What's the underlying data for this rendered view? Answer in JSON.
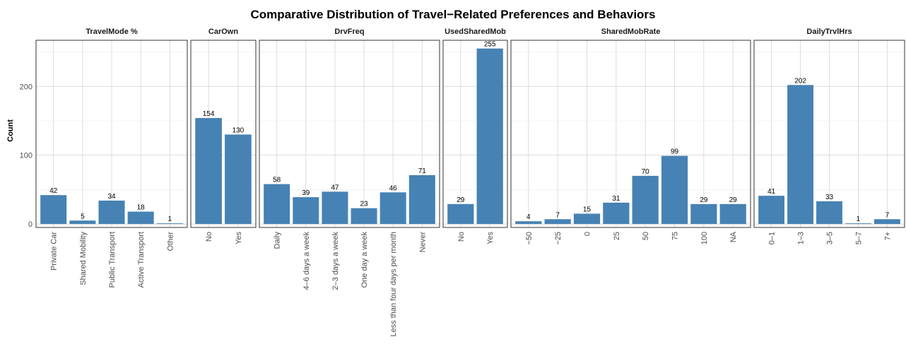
{
  "chart_data": {
    "type": "bar",
    "title": "Comparative Distribution of Travel−Related Preferences and Behaviors",
    "ylabel": "Count",
    "xlabel": "",
    "ylim": [
      -5,
      267
    ],
    "y_ticks": [
      0,
      100,
      200
    ],
    "grid": true,
    "bar_color": "#4682B4",
    "facets": [
      {
        "name": "TravelMode %",
        "categories": [
          "Private Car",
          "Shared Mobility",
          "Public Transport",
          "Active Transport",
          "Other"
        ],
        "values": [
          42,
          5,
          34,
          18,
          1
        ]
      },
      {
        "name": "CarOwn",
        "categories": [
          "No",
          "Yes"
        ],
        "values": [
          154,
          130
        ]
      },
      {
        "name": "DrvFreq",
        "categories": [
          "Daily",
          "4–6 days a week",
          "2–3 days a week",
          "One day a week",
          "Less than four days per month",
          "Never"
        ],
        "values": [
          58,
          39,
          47,
          23,
          46,
          71
        ]
      },
      {
        "name": "UsedSharedMob",
        "categories": [
          "No",
          "Yes"
        ],
        "values": [
          29,
          255
        ]
      },
      {
        "name": "SharedMobRate",
        "categories": [
          "−50",
          "−25",
          "0",
          "25",
          "50",
          "75",
          "100",
          "NA"
        ],
        "values": [
          4,
          7,
          15,
          31,
          70,
          99,
          29,
          29
        ]
      },
      {
        "name": "DailyTrvlHrs",
        "categories": [
          "0–1",
          "1–3",
          "3–5",
          "5–7",
          "7+"
        ],
        "values": [
          41,
          202,
          33,
          1,
          7
        ]
      }
    ]
  }
}
